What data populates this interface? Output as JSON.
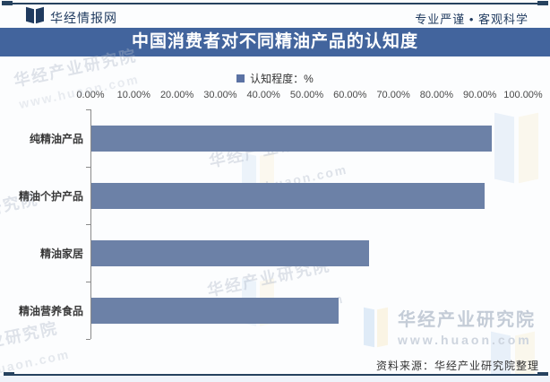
{
  "header": {
    "brand": "华经情报网",
    "slogan": "专业严谨 • 客观科学"
  },
  "title": "中国消费者对不同精油产品的认知度",
  "legend": {
    "label": "认知程度：%"
  },
  "chart_data": {
    "type": "bar",
    "orientation": "horizontal",
    "title": "中国消费者对不同精油产品的认知度",
    "categories": [
      "纯精油产品",
      "精油个护产品",
      "精油家居",
      "精油营养食品"
    ],
    "values": [
      92.5,
      90.8,
      64.2,
      57.1
    ],
    "unit": "%",
    "x_ticks": [
      "0.00%",
      "10.00%",
      "20.00%",
      "30.00%",
      "40.00%",
      "50.00%",
      "60.00%",
      "70.00%",
      "80.00%",
      "90.00%",
      "100.00%"
    ],
    "xlim": [
      0,
      100
    ],
    "legend": [
      "认知程度：%"
    ],
    "legend_position": "top",
    "grid": false,
    "bar_color": "#6C81A7"
  },
  "footer": {
    "source": "资料来源：华经产业研究院整理"
  },
  "watermark": {
    "name": "华经产业研究院",
    "url": "www.huaon.com",
    "url_short": "huaon.com"
  },
  "colors": {
    "accent_navy": "#1F3A5F",
    "title_bar_blue": "#42649D",
    "bar_blue": "#6C81A7",
    "legend_marker_blue": "#5B72A4"
  }
}
